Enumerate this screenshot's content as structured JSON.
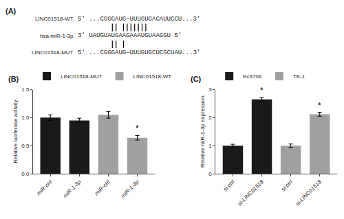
{
  "chart_data": [
    {
      "type": "diagram",
      "title": "(A)",
      "rows": [
        {
          "label": "LINC01518-WT",
          "sequence": "5' ...CGGGAUG−UUUGUGACAUUCCU...3'"
        },
        {
          "label": "hsa-miR-1-3p",
          "sequence": "3' UAUGUAUGAAGAAAUGUAAGGU 5'"
        },
        {
          "label": "LINC01518-MUT",
          "sequence": "5' ...CGGGAUG−UUUGUGCUCGCUAU...3'"
        }
      ],
      "wt_bars": [
        9,
        10,
        12,
        13,
        14,
        15,
        16,
        17,
        18
      ],
      "mut_bars": [
        9,
        10,
        12
      ]
    },
    {
      "type": "bar",
      "title": "(B)",
      "ylabel": "Relative luciferase activity",
      "categories": [
        "miR-ctrl",
        "miR-1-3p",
        "miR-ctrl",
        "miR-1-3p"
      ],
      "series": [
        {
          "name": "LINC01518-MUT",
          "color": "#1a1a1a",
          "values": [
            1.0,
            0.95,
            null,
            null
          ],
          "errors": [
            0.05,
            0.04,
            null,
            null
          ]
        },
        {
          "name": "LINC01518-WT",
          "color": "#a0a0a0",
          "values": [
            null,
            null,
            1.05,
            0.64
          ],
          "errors": [
            null,
            null,
            0.06,
            0.04
          ]
        }
      ],
      "ylim": [
        0,
        1.5
      ],
      "yticks": [
        {
          "value": 0,
          "label": "0.0"
        },
        0.5,
        {
          "value": 1,
          "label": "1.0"
        },
        1.5
      ],
      "annotations": [
        {
          "text": "*",
          "x": 3
        }
      ],
      "legend": "upper left",
      "grid": false
    },
    {
      "type": "bar",
      "title": "(C)",
      "ylabel": "Relative miR-1-3p expression",
      "categories": [
        "si-ctrl",
        "si-LINC01518",
        "si-ctrl",
        "si-LINC01518"
      ],
      "series": [
        {
          "name": "Ec9706",
          "color": "#1a1a1a",
          "values": [
            1.0,
            2.65,
            null,
            null
          ],
          "errors": [
            0.05,
            0.07,
            null,
            null
          ]
        },
        {
          "name": "TE-1",
          "color": "#a0a0a0",
          "values": [
            null,
            null,
            1.0,
            2.12
          ],
          "errors": [
            null,
            null,
            0.06,
            0.07
          ]
        }
      ],
      "ylim": [
        0,
        3.0
      ],
      "yticks": [
        0,
        1,
        2,
        3
      ],
      "annotations": [
        {
          "text": "*",
          "x": 1
        },
        {
          "text": "*",
          "x": 3
        }
      ],
      "legend": "upper left",
      "grid": false
    }
  ]
}
